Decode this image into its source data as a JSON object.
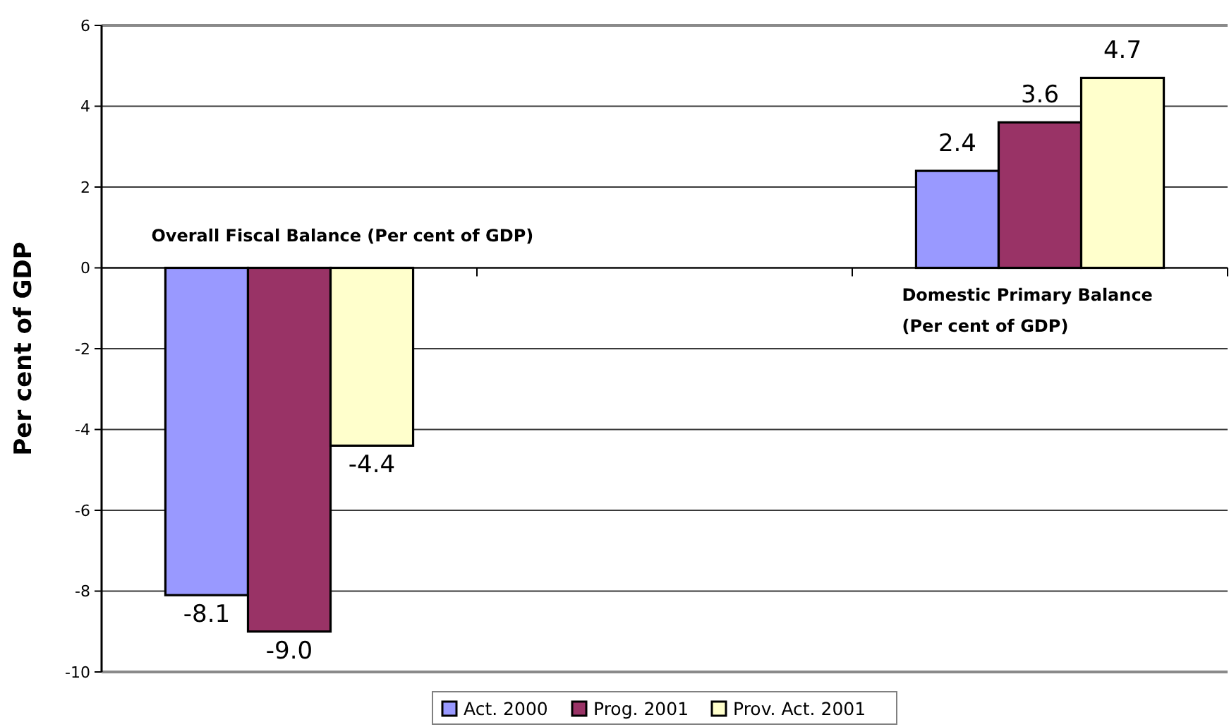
{
  "chart_data": {
    "type": "bar",
    "ylabel": "Per cent of GDP",
    "categories": [
      null,
      null,
      null
    ],
    "series": [
      {
        "name": "Act. 2000",
        "color": "#9999ff",
        "values": [
          -8.1,
          null,
          2.4
        ],
        "value_labels": [
          "-8.1",
          null,
          "2.4"
        ]
      },
      {
        "name": "Prog. 2001",
        "color": "#993366",
        "values": [
          -9.0,
          null,
          3.6
        ],
        "value_labels": [
          "-9.0",
          null,
          "3.6"
        ]
      },
      {
        "name": "Prov. Act. 2001",
        "color": "#ffffcc",
        "values": [
          -4.4,
          null,
          4.7
        ],
        "value_labels": [
          "-4.4",
          null,
          "4.7"
        ]
      }
    ],
    "ylim": [
      -10,
      6
    ],
    "yticks": [
      -10,
      -8,
      -6,
      -4,
      -2,
      0,
      2,
      4,
      6
    ],
    "grid": "y",
    "legend": "bottom",
    "annotations": [
      "Overall Fiscal Balance (Per cent of GDP)",
      "Domestic Primary Balance (Per cent of GDP)"
    ]
  }
}
